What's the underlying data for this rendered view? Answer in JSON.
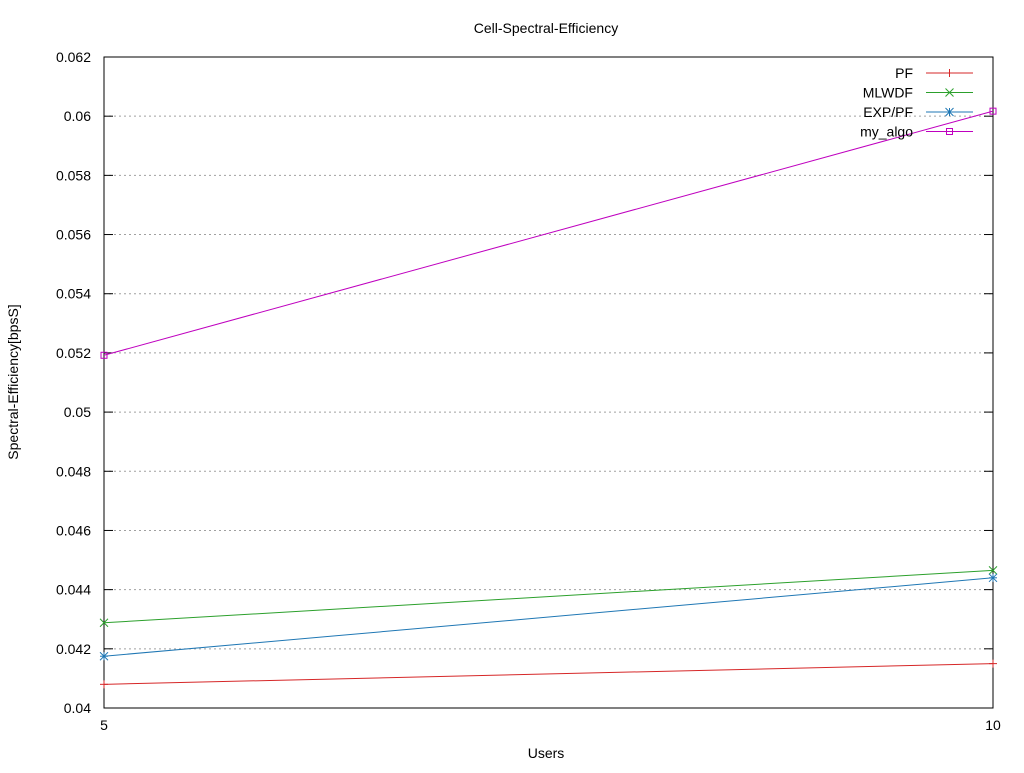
{
  "chart_data": {
    "type": "line",
    "title": "Cell-Spectral-Efficiency",
    "xlabel": "Users",
    "ylabel": "Spectral-Efficiency[bpsS]",
    "x": [
      5,
      10
    ],
    "x_ticks": [
      "5",
      "10"
    ],
    "xlim": [
      5,
      10
    ],
    "ylim": [
      0.04,
      0.062
    ],
    "y_ticks": [
      "0.04",
      "0.042",
      "0.044",
      "0.046",
      "0.048",
      "0.05",
      "0.052",
      "0.054",
      "0.056",
      "0.058",
      "0.06",
      "0.062"
    ],
    "grid": "horizontal dotted",
    "legend_position": "top-right",
    "series": [
      {
        "name": "PF",
        "values": [
          0.0408,
          0.0415
        ],
        "color": "#d62728",
        "marker": "plus"
      },
      {
        "name": "MLWDF",
        "values": [
          0.04288,
          0.04465
        ],
        "color": "#2ca02c",
        "marker": "cross"
      },
      {
        "name": "EXP/PF",
        "values": [
          0.04175,
          0.0444
        ],
        "color": "#1f77b4",
        "marker": "star"
      },
      {
        "name": "my_algo",
        "values": [
          0.05192,
          0.06017
        ],
        "color": "#bf00bf",
        "marker": "square"
      }
    ]
  }
}
